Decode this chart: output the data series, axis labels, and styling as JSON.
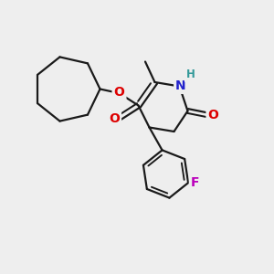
{
  "bg_color": "#eeeeee",
  "bond_color": "#1a1a1a",
  "n_color": "#2222cc",
  "o_color": "#dd0000",
  "f_color": "#bb00bb",
  "h_color": "#339999",
  "line_width": 1.6,
  "font_size_atom": 10,
  "font_size_h": 8.5,
  "xlim": [
    0,
    10
  ],
  "ylim": [
    0,
    10
  ]
}
